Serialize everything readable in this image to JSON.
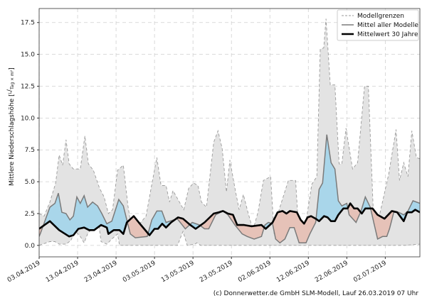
{
  "chart_data": {
    "type": "area",
    "ylabel": "Mittlere Niederschlagshöhe [L / (Tag × m²)]",
    "ylabel_main": "Mittlere Niederschlagshöhe",
    "ylabel_unit_num": "L",
    "ylabel_unit_den": "Tag × m²",
    "x_unit": "days since 03.04.2019",
    "xlim": [
      0,
      99
    ],
    "ylim": [
      -0.9,
      18.6
    ],
    "grid": true,
    "legend_position": "top-right",
    "x_ticks": [
      {
        "day": 0,
        "label": "03.04.2019"
      },
      {
        "day": 10,
        "label": "13.04.2019"
      },
      {
        "day": 20,
        "label": "23.04.2019"
      },
      {
        "day": 30,
        "label": "03.05.2019"
      },
      {
        "day": 40,
        "label": "13.05.2019"
      },
      {
        "day": 50,
        "label": "23.05.2019"
      },
      {
        "day": 60,
        "label": "02.06.2019"
      },
      {
        "day": 70,
        "label": "12.06.2019"
      },
      {
        "day": 80,
        "label": "22.06.2019"
      },
      {
        "day": 90,
        "label": "02.07.2019"
      }
    ],
    "y_ticks": [
      {
        "value": 0,
        "label": "0.0"
      },
      {
        "value": 2.5,
        "label": "2.5"
      },
      {
        "value": 5,
        "label": "5.0"
      },
      {
        "value": 7.5,
        "label": "7.5"
      },
      {
        "value": 10,
        "label": "10.0"
      },
      {
        "value": 12.5,
        "label": "12.5"
      },
      {
        "value": 15,
        "label": "15.0"
      },
      {
        "value": 17.5,
        "label": "17.5"
      }
    ],
    "series": {
      "upper": {
        "name": "Modellgrenzen",
        "points": [
          [
            0,
            2.5
          ],
          [
            1.3,
            2.3
          ],
          [
            2.8,
            3.4
          ],
          [
            4.3,
            4.9
          ],
          [
            5.2,
            7.1
          ],
          [
            6.1,
            6.3
          ],
          [
            7,
            8.3
          ],
          [
            7.8,
            6.4
          ],
          [
            8.9,
            6.0
          ],
          [
            10.7,
            6.0
          ],
          [
            11.9,
            8.6
          ],
          [
            12.8,
            6.4
          ],
          [
            14.1,
            5.9
          ],
          [
            15.7,
            4.5
          ],
          [
            16.9,
            3.8
          ],
          [
            18,
            2.5
          ],
          [
            19.1,
            2.8
          ],
          [
            20.4,
            5.9
          ],
          [
            21.9,
            6.3
          ],
          [
            23.1,
            3.1
          ],
          [
            24.1,
            1.2
          ],
          [
            25.6,
            1.5
          ],
          [
            27.8,
            2.3
          ],
          [
            29.1,
            4.5
          ],
          [
            30.6,
            6.9
          ],
          [
            31.7,
            4.7
          ],
          [
            33,
            4.7
          ],
          [
            33.9,
            3.4
          ],
          [
            34.8,
            4.3
          ],
          [
            37.6,
            2.8
          ],
          [
            38.9,
            4.5
          ],
          [
            40.2,
            4.9
          ],
          [
            41.3,
            4.7
          ],
          [
            42.2,
            3.4
          ],
          [
            43.5,
            3.0
          ],
          [
            45.4,
            8.1
          ],
          [
            46.5,
            9.0
          ],
          [
            47.6,
            7.6
          ],
          [
            48.7,
            4.2
          ],
          [
            49.6,
            6.7
          ],
          [
            50.9,
            4.5
          ],
          [
            52,
            2.8
          ],
          [
            53.1,
            4.0
          ],
          [
            54.3,
            2.6
          ],
          [
            55.6,
            1.2
          ],
          [
            56.9,
            2.6
          ],
          [
            58.3,
            5.1
          ],
          [
            60.2,
            5.4
          ],
          [
            61.1,
            0.9
          ],
          [
            62.4,
            2.8
          ],
          [
            64.8,
            5.1
          ],
          [
            66.7,
            5.1
          ],
          [
            67.6,
            0.6
          ],
          [
            68.9,
            0.9
          ],
          [
            70.9,
            4.8
          ],
          [
            72.2,
            5.4
          ],
          [
            73.1,
            15.4
          ],
          [
            74,
            15.5
          ],
          [
            74.6,
            17.8
          ],
          [
            75.7,
            12.6
          ],
          [
            76.9,
            12.6
          ],
          [
            78,
            6.4
          ],
          [
            78.7,
            6.4
          ],
          [
            79.8,
            9.2
          ],
          [
            81.5,
            6.0
          ],
          [
            82.8,
            6.5
          ],
          [
            84.6,
            12.5
          ],
          [
            85.6,
            12.5
          ],
          [
            87,
            1.7
          ],
          [
            88,
            1.7
          ],
          [
            90.9,
            5.6
          ],
          [
            92.8,
            9.1
          ],
          [
            93.7,
            5.1
          ],
          [
            94.8,
            6.5
          ],
          [
            95.9,
            5.4
          ],
          [
            96.9,
            9.0
          ],
          [
            98.1,
            6.9
          ],
          [
            99,
            6.8
          ]
        ]
      },
      "lower": {
        "name": "Modellgrenzen",
        "points": [
          [
            0,
            0
          ],
          [
            2.8,
            0.3
          ],
          [
            4.1,
            0.3
          ],
          [
            5.2,
            0.1
          ],
          [
            7,
            0.1
          ],
          [
            8.3,
            0.4
          ],
          [
            8.9,
            0.9
          ],
          [
            9.8,
            1.0
          ],
          [
            10.7,
            0.7
          ],
          [
            11.7,
            0.2
          ],
          [
            12.6,
            0.9
          ],
          [
            13.9,
            1.4
          ],
          [
            14.8,
            1.9
          ],
          [
            15.4,
            1.9
          ],
          [
            16.1,
            0.3
          ],
          [
            17.6,
            0.1
          ],
          [
            18.9,
            0.5
          ],
          [
            20.4,
            0.9
          ],
          [
            20.9,
            0
          ],
          [
            36,
            0
          ],
          [
            37.4,
            1.1
          ],
          [
            38.5,
            0
          ],
          [
            40.5,
            0.1
          ],
          [
            41,
            0.2
          ],
          [
            42,
            0
          ],
          [
            95,
            0
          ],
          [
            99,
            0.1
          ]
        ]
      },
      "model_mean": {
        "name": "Mittel aller Modelle",
        "points": [
          [
            0,
            0.7
          ],
          [
            0.4,
            1.0
          ],
          [
            2.8,
            3.0
          ],
          [
            4.1,
            3.3
          ],
          [
            5,
            4.1
          ],
          [
            5.9,
            2.6
          ],
          [
            7,
            2.5
          ],
          [
            8,
            2.0
          ],
          [
            8.9,
            2.3
          ],
          [
            9.8,
            3.8
          ],
          [
            10.7,
            3.3
          ],
          [
            11.7,
            3.9
          ],
          [
            12.6,
            3.0
          ],
          [
            13.9,
            3.4
          ],
          [
            15.2,
            3.1
          ],
          [
            16.3,
            2.5
          ],
          [
            17.6,
            1.7
          ],
          [
            18.9,
            1.9
          ],
          [
            20.7,
            3.6
          ],
          [
            21.9,
            3.1
          ],
          [
            22.8,
            2.0
          ],
          [
            23.7,
            0.9
          ],
          [
            25,
            0.6
          ],
          [
            28.1,
            0.7
          ],
          [
            29.3,
            2.0
          ],
          [
            30.6,
            2.7
          ],
          [
            31.9,
            2.7
          ],
          [
            33,
            1.8
          ],
          [
            35.9,
            2.1
          ],
          [
            38,
            1.3
          ],
          [
            39.8,
            1.8
          ],
          [
            41.7,
            1.6
          ],
          [
            43,
            1.3
          ],
          [
            44.1,
            1.3
          ],
          [
            45.9,
            2.4
          ],
          [
            47.8,
            2.7
          ],
          [
            49.1,
            2.4
          ],
          [
            50.9,
            1.6
          ],
          [
            52.8,
            0.9
          ],
          [
            54.1,
            0.7
          ],
          [
            55.9,
            0.5
          ],
          [
            57.8,
            0.7
          ],
          [
            58.7,
            1.6
          ],
          [
            59.6,
            1.8
          ],
          [
            60.7,
            1.7
          ],
          [
            61.5,
            0.5
          ],
          [
            62.6,
            0.2
          ],
          [
            63.9,
            0.5
          ],
          [
            65.2,
            1.4
          ],
          [
            66.3,
            1.4
          ],
          [
            67.6,
            0.2
          ],
          [
            69.4,
            0.2
          ],
          [
            70.4,
            0.9
          ],
          [
            71.9,
            1.8
          ],
          [
            72.8,
            4.4
          ],
          [
            73.7,
            4.9
          ],
          [
            74.8,
            8.7
          ],
          [
            75.9,
            6.5
          ],
          [
            76.9,
            6.0
          ],
          [
            77.8,
            3.5
          ],
          [
            78.7,
            3.1
          ],
          [
            80,
            3.3
          ],
          [
            80.6,
            2.4
          ],
          [
            82.4,
            1.8
          ],
          [
            83.7,
            2.7
          ],
          [
            84.8,
            3.8
          ],
          [
            86.1,
            3.0
          ],
          [
            87,
            1.8
          ],
          [
            88,
            0.5
          ],
          [
            89.3,
            0.7
          ],
          [
            90.4,
            0.7
          ],
          [
            91.1,
            1.3
          ],
          [
            92.2,
            2.6
          ],
          [
            93.5,
            2.6
          ],
          [
            94.8,
            2.4
          ],
          [
            95.9,
            2.7
          ],
          [
            97.2,
            3.5
          ],
          [
            99,
            3.3
          ]
        ]
      },
      "mean_30y": {
        "name": "Mittelwert 30 Jahre",
        "points": [
          [
            0,
            1.3
          ],
          [
            2.8,
            1.9
          ],
          [
            5.2,
            1.2
          ],
          [
            7.8,
            0.7
          ],
          [
            8.9,
            0.8
          ],
          [
            10.2,
            1.3
          ],
          [
            11.7,
            1.4
          ],
          [
            13,
            1.2
          ],
          [
            14.3,
            1.2
          ],
          [
            16.1,
            1.6
          ],
          [
            17.6,
            1.4
          ],
          [
            18,
            0.9
          ],
          [
            19.4,
            1.2
          ],
          [
            20.9,
            1.2
          ],
          [
            21.9,
            0.9
          ],
          [
            22.8,
            1.8
          ],
          [
            24.6,
            2.3
          ],
          [
            25.9,
            1.8
          ],
          [
            28.7,
            0.8
          ],
          [
            30,
            1.3
          ],
          [
            30.9,
            1.3
          ],
          [
            32,
            1.7
          ],
          [
            33,
            1.4
          ],
          [
            34.3,
            1.8
          ],
          [
            36.1,
            2.2
          ],
          [
            37.4,
            2.1
          ],
          [
            39.3,
            1.6
          ],
          [
            40.7,
            1.3
          ],
          [
            43,
            1.8
          ],
          [
            45.4,
            2.5
          ],
          [
            46.7,
            2.6
          ],
          [
            47.8,
            2.7
          ],
          [
            49.1,
            2.5
          ],
          [
            50.4,
            2.4
          ],
          [
            51.5,
            1.6
          ],
          [
            53.3,
            1.6
          ],
          [
            55.2,
            1.5
          ],
          [
            57.8,
            1.6
          ],
          [
            58.9,
            1.3
          ],
          [
            60.7,
            1.8
          ],
          [
            62,
            2.6
          ],
          [
            63.3,
            2.7
          ],
          [
            64.3,
            2.5
          ],
          [
            65.2,
            2.7
          ],
          [
            67,
            2.6
          ],
          [
            68,
            2.0
          ],
          [
            68.9,
            1.7
          ],
          [
            69.8,
            2.2
          ],
          [
            70.7,
            2.3
          ],
          [
            71.9,
            2.1
          ],
          [
            72.8,
            1.9
          ],
          [
            74.1,
            2.3
          ],
          [
            75,
            2.2
          ],
          [
            75.9,
            1.9
          ],
          [
            76.9,
            1.9
          ],
          [
            77.8,
            2.4
          ],
          [
            79.1,
            2.9
          ],
          [
            80.2,
            2.9
          ],
          [
            80.9,
            3.3
          ],
          [
            81.9,
            2.9
          ],
          [
            82.8,
            2.9
          ],
          [
            83.9,
            2.5
          ],
          [
            84.8,
            2.9
          ],
          [
            86.7,
            2.9
          ],
          [
            88,
            2.4
          ],
          [
            89.8,
            2.1
          ],
          [
            91.7,
            2.7
          ],
          [
            93.1,
            2.6
          ],
          [
            94.8,
            1.9
          ],
          [
            95.7,
            2.6
          ],
          [
            96.9,
            2.6
          ],
          [
            97.8,
            2.8
          ],
          [
            99,
            2.6
          ]
        ]
      }
    },
    "legend": [
      {
        "key": "upper",
        "label": "Modellgrenzen"
      },
      {
        "key": "model_mean",
        "label": "Mittel aller Modelle"
      },
      {
        "key": "mean_30y",
        "label": "Mittelwert 30 Jahre"
      }
    ],
    "colors": {
      "band": "#e3e3e3",
      "bound_line": "#9a9a9a",
      "mean_line": "#7a7a7a",
      "mean30_line": "#000000",
      "above": "#a9d6ea",
      "below": "#e6c2b8"
    }
  },
  "footer": "(c) Donnerwetter.de GmbH SLM-Modell, Lauf 26.03.2019 07 Uhr"
}
